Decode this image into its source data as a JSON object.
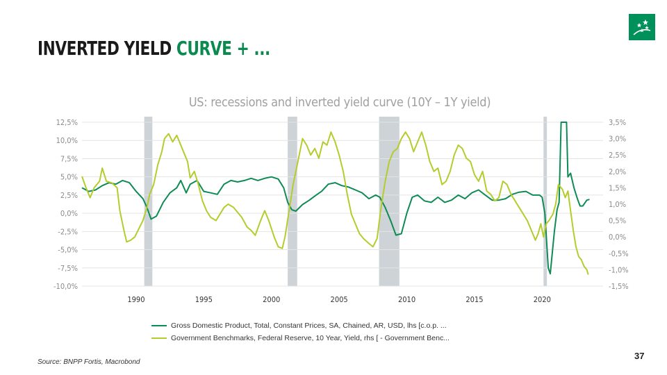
{
  "slide": {
    "title_part1": "INVERTED YIELD ",
    "title_part2": "CURVE + ...",
    "source": "Source: BNPP Fortis, Macrobond",
    "page_number": "37",
    "accent_color": "#0b8a50",
    "logo_icon": "bnp-stars-logo-icon"
  },
  "chart_data": {
    "type": "line",
    "title": "US: recessions and inverted yield curve (10Y – 1Y yield)",
    "xlabel": "",
    "x_ticks": [
      "1990",
      "1995",
      "2000",
      "2005",
      "2010",
      "2015",
      "2020"
    ],
    "x_tick_values": [
      1990,
      1995,
      2000,
      2005,
      2010,
      2015,
      2020
    ],
    "xlim": [
      1986,
      2024.5
    ],
    "y_left": {
      "ylim": [
        -10,
        12.5
      ],
      "ticks": [
        -10,
        -7.5,
        -5,
        -2.5,
        0,
        2.5,
        5,
        7.5,
        10,
        12.5
      ],
      "tick_labels": [
        "-10,0%",
        "-7,5%",
        "-5,0%",
        "-2,5%",
        "0,0%",
        "2,5%",
        "5,0%",
        "7,5%",
        "10,0%",
        "12,5%"
      ]
    },
    "y_right": {
      "ylim": [
        -1.5,
        3.5
      ],
      "ticks": [
        -1.5,
        -1.0,
        -0.5,
        0,
        0.5,
        1.0,
        1.5,
        2.0,
        2.5,
        3.0,
        3.5
      ],
      "tick_labels": [
        "-1,5%",
        "-1,0%",
        "-0,5%",
        "0,0%",
        "0,5%",
        "1,0%",
        "1,5%",
        "2,0%",
        "2,5%",
        "3,0%",
        "3,5%"
      ]
    },
    "grid": true,
    "legend_position": "bottom",
    "recessions": [
      {
        "start": 1990.6,
        "end": 1991.2
      },
      {
        "start": 2001.2,
        "end": 2001.9
      },
      {
        "start": 2007.95,
        "end": 2009.45
      },
      {
        "start": 2020.1,
        "end": 2020.35
      }
    ],
    "recession_color": "#cdd3d6",
    "series": [
      {
        "name": "Gross Domestic Product, Total, Constant Prices, SA, Chained, AR, USD, lhs [c.o.p. ...",
        "axis": "left",
        "color": "#0e8b55",
        "points": [
          [
            1986.0,
            3.5
          ],
          [
            1986.5,
            3.0
          ],
          [
            1987.0,
            3.2
          ],
          [
            1987.5,
            3.8
          ],
          [
            1988.0,
            4.2
          ],
          [
            1988.5,
            4.0
          ],
          [
            1989.0,
            4.5
          ],
          [
            1989.5,
            4.2
          ],
          [
            1990.0,
            3.0
          ],
          [
            1990.5,
            2.0
          ],
          [
            1990.8,
            0.8
          ],
          [
            1991.1,
            -0.8
          ],
          [
            1991.5,
            -0.4
          ],
          [
            1992.0,
            1.5
          ],
          [
            1992.5,
            2.8
          ],
          [
            1993.0,
            3.5
          ],
          [
            1993.3,
            4.5
          ],
          [
            1993.7,
            2.8
          ],
          [
            1994.0,
            4.0
          ],
          [
            1994.5,
            4.5
          ],
          [
            1995.0,
            3.0
          ],
          [
            1995.5,
            2.8
          ],
          [
            1996.0,
            2.6
          ],
          [
            1996.5,
            4.0
          ],
          [
            1997.0,
            4.5
          ],
          [
            1997.5,
            4.3
          ],
          [
            1998.0,
            4.5
          ],
          [
            1998.5,
            4.8
          ],
          [
            1999.0,
            4.5
          ],
          [
            1999.5,
            4.8
          ],
          [
            2000.0,
            5.0
          ],
          [
            2000.5,
            4.7
          ],
          [
            2000.9,
            3.5
          ],
          [
            2001.2,
            1.5
          ],
          [
            2001.5,
            0.5
          ],
          [
            2001.8,
            0.3
          ],
          [
            2002.3,
            1.2
          ],
          [
            2002.8,
            1.8
          ],
          [
            2003.3,
            2.5
          ],
          [
            2003.7,
            3.0
          ],
          [
            2004.2,
            4.0
          ],
          [
            2004.7,
            4.2
          ],
          [
            2005.2,
            3.8
          ],
          [
            2005.7,
            3.6
          ],
          [
            2006.2,
            3.2
          ],
          [
            2006.7,
            2.8
          ],
          [
            2007.2,
            2.0
          ],
          [
            2007.7,
            2.5
          ],
          [
            2008.0,
            2.2
          ],
          [
            2008.4,
            0.8
          ],
          [
            2008.8,
            -1.0
          ],
          [
            2009.2,
            -3.0
          ],
          [
            2009.6,
            -2.8
          ],
          [
            2010.0,
            0.0
          ],
          [
            2010.4,
            2.2
          ],
          [
            2010.8,
            2.5
          ],
          [
            2011.3,
            1.7
          ],
          [
            2011.8,
            1.5
          ],
          [
            2012.3,
            2.2
          ],
          [
            2012.8,
            1.5
          ],
          [
            2013.3,
            1.8
          ],
          [
            2013.8,
            2.5
          ],
          [
            2014.3,
            2.0
          ],
          [
            2014.8,
            2.8
          ],
          [
            2015.3,
            3.2
          ],
          [
            2015.8,
            2.5
          ],
          [
            2016.3,
            1.8
          ],
          [
            2016.8,
            1.8
          ],
          [
            2017.3,
            2.0
          ],
          [
            2017.8,
            2.6
          ],
          [
            2018.3,
            2.9
          ],
          [
            2018.8,
            3.0
          ],
          [
            2019.3,
            2.5
          ],
          [
            2019.8,
            2.5
          ],
          [
            2020.0,
            2.2
          ],
          [
            2020.2,
            0.0
          ],
          [
            2020.45,
            -7.5
          ],
          [
            2020.6,
            -8.3
          ],
          [
            2020.9,
            -2.5
          ],
          [
            2021.1,
            0.5
          ],
          [
            2021.25,
            1.5
          ],
          [
            2021.4,
            12.5
          ],
          [
            2021.8,
            12.5
          ],
          [
            2021.9,
            5.0
          ],
          [
            2022.1,
            5.5
          ],
          [
            2022.35,
            3.5
          ],
          [
            2022.6,
            2.0
          ],
          [
            2022.8,
            1.0
          ],
          [
            2023.0,
            1.0
          ],
          [
            2023.3,
            1.8
          ],
          [
            2023.5,
            1.9
          ]
        ]
      },
      {
        "name": "Government Benchmarks, Federal Reserve, 10 Year, Yield, rhs [ - Government Benc...",
        "axis": "right",
        "color": "#b5cc2c",
        "points": [
          [
            1986.0,
            1.85
          ],
          [
            1986.3,
            1.5
          ],
          [
            1986.6,
            1.2
          ],
          [
            1986.9,
            1.5
          ],
          [
            1987.3,
            1.7
          ],
          [
            1987.5,
            2.1
          ],
          [
            1987.8,
            1.7
          ],
          [
            1988.2,
            1.65
          ],
          [
            1988.6,
            1.5
          ],
          [
            1988.8,
            0.8
          ],
          [
            1989.1,
            0.2
          ],
          [
            1989.3,
            -0.15
          ],
          [
            1989.6,
            -0.1
          ],
          [
            1989.9,
            0.0
          ],
          [
            1990.2,
            0.25
          ],
          [
            1990.5,
            0.5
          ],
          [
            1990.8,
            0.9
          ],
          [
            1991.0,
            1.3
          ],
          [
            1991.3,
            1.6
          ],
          [
            1991.6,
            2.2
          ],
          [
            1991.9,
            2.6
          ],
          [
            1992.1,
            3.0
          ],
          [
            1992.4,
            3.15
          ],
          [
            1992.7,
            2.9
          ],
          [
            1993.0,
            3.1
          ],
          [
            1993.3,
            2.8
          ],
          [
            1993.6,
            2.5
          ],
          [
            1993.8,
            2.3
          ],
          [
            1994.0,
            1.8
          ],
          [
            1994.3,
            2.0
          ],
          [
            1994.6,
            1.6
          ],
          [
            1994.9,
            1.1
          ],
          [
            1995.2,
            0.8
          ],
          [
            1995.5,
            0.6
          ],
          [
            1995.9,
            0.5
          ],
          [
            1996.2,
            0.7
          ],
          [
            1996.5,
            0.9
          ],
          [
            1996.8,
            1.0
          ],
          [
            1997.2,
            0.9
          ],
          [
            1997.5,
            0.75
          ],
          [
            1997.8,
            0.6
          ],
          [
            1998.2,
            0.3
          ],
          [
            1998.5,
            0.2
          ],
          [
            1998.8,
            0.05
          ],
          [
            1999.2,
            0.5
          ],
          [
            1999.5,
            0.8
          ],
          [
            1999.8,
            0.5
          ],
          [
            2000.2,
            0.0
          ],
          [
            2000.5,
            -0.3
          ],
          [
            2000.8,
            -0.35
          ],
          [
            2001.0,
            0.0
          ],
          [
            2001.3,
            0.8
          ],
          [
            2001.6,
            1.6
          ],
          [
            2002.0,
            2.4
          ],
          [
            2002.3,
            3.0
          ],
          [
            2002.6,
            2.8
          ],
          [
            2002.9,
            2.5
          ],
          [
            2003.2,
            2.7
          ],
          [
            2003.5,
            2.4
          ],
          [
            2003.8,
            2.9
          ],
          [
            2004.1,
            2.8
          ],
          [
            2004.4,
            3.2
          ],
          [
            2004.7,
            2.9
          ],
          [
            2005.0,
            2.5
          ],
          [
            2005.3,
            2.0
          ],
          [
            2005.6,
            1.3
          ],
          [
            2005.9,
            0.7
          ],
          [
            2006.2,
            0.4
          ],
          [
            2006.5,
            0.1
          ],
          [
            2006.8,
            -0.05
          ],
          [
            2007.2,
            -0.2
          ],
          [
            2007.5,
            -0.3
          ],
          [
            2007.8,
            -0.05
          ],
          [
            2008.1,
            0.9
          ],
          [
            2008.4,
            1.7
          ],
          [
            2008.7,
            2.3
          ],
          [
            2009.0,
            2.6
          ],
          [
            2009.3,
            2.7
          ],
          [
            2009.6,
            3.0
          ],
          [
            2009.9,
            3.2
          ],
          [
            2010.2,
            3.0
          ],
          [
            2010.5,
            2.6
          ],
          [
            2010.8,
            2.9
          ],
          [
            2011.1,
            3.2
          ],
          [
            2011.4,
            2.8
          ],
          [
            2011.7,
            2.3
          ],
          [
            2012.0,
            2.0
          ],
          [
            2012.3,
            2.1
          ],
          [
            2012.6,
            1.6
          ],
          [
            2012.9,
            1.7
          ],
          [
            2013.2,
            2.0
          ],
          [
            2013.5,
            2.5
          ],
          [
            2013.8,
            2.8
          ],
          [
            2014.1,
            2.7
          ],
          [
            2014.4,
            2.4
          ],
          [
            2014.7,
            2.3
          ],
          [
            2015.0,
            1.9
          ],
          [
            2015.3,
            1.7
          ],
          [
            2015.6,
            2.0
          ],
          [
            2015.9,
            1.4
          ],
          [
            2016.2,
            1.3
          ],
          [
            2016.5,
            1.1
          ],
          [
            2016.8,
            1.2
          ],
          [
            2017.1,
            1.7
          ],
          [
            2017.4,
            1.6
          ],
          [
            2017.7,
            1.3
          ],
          [
            2018.0,
            1.1
          ],
          [
            2018.3,
            0.9
          ],
          [
            2018.6,
            0.7
          ],
          [
            2018.9,
            0.5
          ],
          [
            2019.2,
            0.2
          ],
          [
            2019.5,
            -0.1
          ],
          [
            2019.7,
            0.1
          ],
          [
            2019.9,
            0.4
          ],
          [
            2020.1,
            0.0
          ],
          [
            2020.3,
            0.4
          ],
          [
            2020.5,
            0.5
          ],
          [
            2020.8,
            0.7
          ],
          [
            2021.0,
            1.0
          ],
          [
            2021.2,
            1.6
          ],
          [
            2021.5,
            1.45
          ],
          [
            2021.7,
            1.2
          ],
          [
            2021.9,
            1.4
          ],
          [
            2022.1,
            0.8
          ],
          [
            2022.3,
            0.2
          ],
          [
            2022.5,
            -0.3
          ],
          [
            2022.7,
            -0.6
          ],
          [
            2022.9,
            -0.7
          ],
          [
            2023.1,
            -0.9
          ],
          [
            2023.3,
            -1.0
          ],
          [
            2023.4,
            -1.15
          ]
        ]
      }
    ]
  }
}
